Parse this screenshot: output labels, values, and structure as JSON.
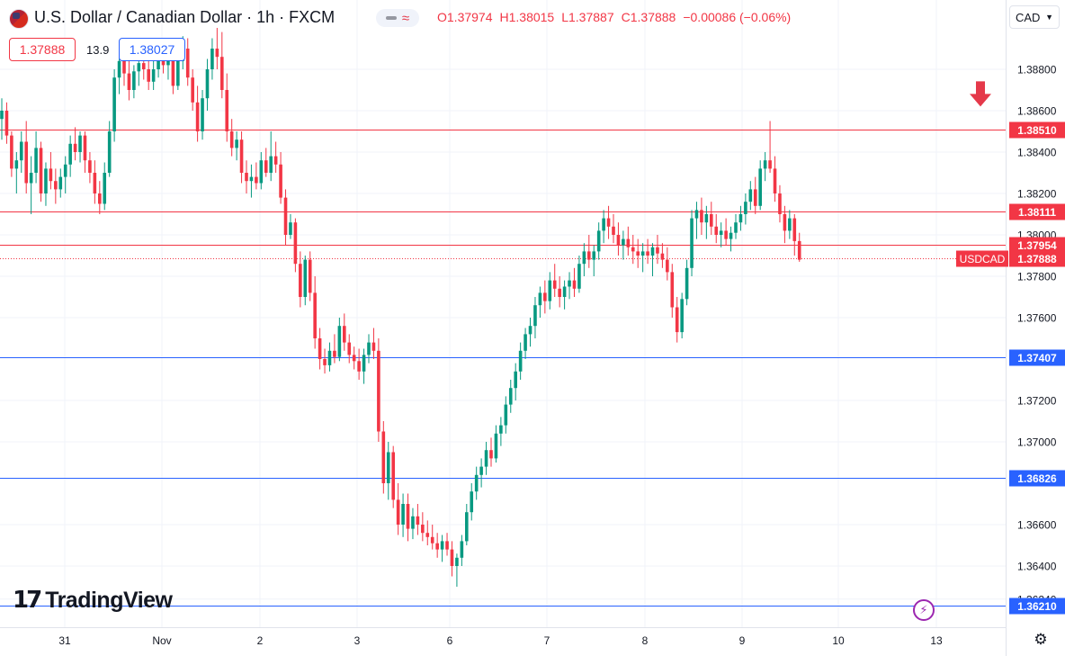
{
  "header": {
    "title": "U.S. Dollar / Canadian Dollar · 1h · FXCM",
    "open": "O1.37974",
    "high": "H1.38015",
    "low": "L1.37887",
    "close": "C1.37888",
    "change": "−0.00086 (−0.06%)",
    "sell_price": "1.37888",
    "spread": "13.9",
    "buy_price": "1.38027",
    "currency": "CAD"
  },
  "brand": "TradingView",
  "colors": {
    "up": "#089981",
    "down": "#f23645",
    "resistance": "#f23645",
    "support": "#2962ff",
    "arrow": "#e5394a"
  },
  "icons": {
    "currency_chevron": "chevron-down-icon",
    "settings": "gear-icon",
    "bolt": "lightning-icon",
    "arrow": "down-arrow-icon"
  },
  "chart_data": {
    "type": "candlestick",
    "symbol": "USDCAD",
    "timeframe": "1h",
    "ylim": [
      1.3626,
      1.3903
    ],
    "yticks": [
      "1.38800",
      "1.38600",
      "1.38400",
      "1.38200",
      "1.38000",
      "1.37800",
      "1.37600",
      "1.37200",
      "1.37000",
      "1.36600",
      "1.36400",
      "1.36240"
    ],
    "xticks": [
      {
        "label": "31",
        "date": "2023-10-31"
      },
      {
        "label": "Nov",
        "date": "2023-11-01"
      },
      {
        "label": "2",
        "date": "2023-11-02"
      },
      {
        "label": "3",
        "date": "2023-11-03"
      },
      {
        "label": "6",
        "date": "2023-11-06"
      },
      {
        "label": "7",
        "date": "2023-11-07"
      },
      {
        "label": "8",
        "date": "2023-11-08"
      },
      {
        "label": "9",
        "date": "2023-11-09"
      },
      {
        "label": "10",
        "date": "2023-11-10"
      },
      {
        "label": "13",
        "date": "2023-11-13"
      }
    ],
    "horizontal_lines": [
      {
        "value": 1.3851,
        "label": "1.38510",
        "color": "#f23645"
      },
      {
        "value": 1.38111,
        "label": "1.38111",
        "color": "#f23645"
      },
      {
        "value": 1.37954,
        "label": "1.37954",
        "color": "#f23645"
      },
      {
        "value": 1.37407,
        "label": "1.37407",
        "color": "#2962ff"
      },
      {
        "value": 1.36826,
        "label": "1.36826",
        "color": "#2962ff"
      },
      {
        "value": 1.3621,
        "label": "1.36210",
        "color": "#2962ff"
      }
    ],
    "current_price": {
      "value": 1.37888,
      "label": "1.37888",
      "symbol_label": "USDCAD"
    },
    "marker": {
      "type": "down-arrow",
      "x_index": 200,
      "y": 1.3862
    },
    "ohlc": [
      [
        1.3856,
        1.3866,
        1.3846,
        1.386
      ],
      [
        1.386,
        1.3864,
        1.3844,
        1.3848
      ],
      [
        1.3848,
        1.385,
        1.3828,
        1.3832
      ],
      [
        1.3832,
        1.384,
        1.382,
        1.3836
      ],
      [
        1.3836,
        1.385,
        1.383,
        1.3845
      ],
      [
        1.3845,
        1.3855,
        1.382,
        1.3825
      ],
      [
        1.3825,
        1.3838,
        1.381,
        1.383
      ],
      [
        1.383,
        1.385,
        1.3825,
        1.3842
      ],
      [
        1.3842,
        1.3845,
        1.3816,
        1.382
      ],
      [
        1.382,
        1.3835,
        1.3814,
        1.3832
      ],
      [
        1.3832,
        1.384,
        1.3822,
        1.3826
      ],
      [
        1.3826,
        1.3832,
        1.3815,
        1.3822
      ],
      [
        1.3822,
        1.3832,
        1.3818,
        1.3828
      ],
      [
        1.3828,
        1.3838,
        1.382,
        1.3834
      ],
      [
        1.3834,
        1.3848,
        1.3828,
        1.3844
      ],
      [
        1.3844,
        1.3852,
        1.3836,
        1.384
      ],
      [
        1.384,
        1.385,
        1.3835,
        1.3848
      ],
      [
        1.3848,
        1.385,
        1.383,
        1.3836
      ],
      [
        1.3836,
        1.384,
        1.3825,
        1.383
      ],
      [
        1.383,
        1.3836,
        1.3815,
        1.382
      ],
      [
        1.382,
        1.3826,
        1.381,
        1.3815
      ],
      [
        1.3815,
        1.3835,
        1.3812,
        1.383
      ],
      [
        1.383,
        1.3855,
        1.3828,
        1.385
      ],
      [
        1.385,
        1.388,
        1.3845,
        1.3876
      ],
      [
        1.3876,
        1.3888,
        1.3868,
        1.3884
      ],
      [
        1.3884,
        1.389,
        1.3872,
        1.3878
      ],
      [
        1.3878,
        1.3885,
        1.3865,
        1.387
      ],
      [
        1.387,
        1.3882,
        1.3866,
        1.3879
      ],
      [
        1.3879,
        1.3888,
        1.3872,
        1.3883
      ],
      [
        1.3883,
        1.389,
        1.3875,
        1.388
      ],
      [
        1.388,
        1.3886,
        1.387,
        1.3874
      ],
      [
        1.3874,
        1.3884,
        1.387,
        1.388
      ],
      [
        1.388,
        1.389,
        1.3876,
        1.3886
      ],
      [
        1.3886,
        1.3892,
        1.3878,
        1.3882
      ],
      [
        1.3882,
        1.3888,
        1.3875,
        1.3884
      ],
      [
        1.3884,
        1.389,
        1.3868,
        1.3872
      ],
      [
        1.3872,
        1.3886,
        1.387,
        1.3884
      ],
      [
        1.3884,
        1.3896,
        1.388,
        1.389
      ],
      [
        1.389,
        1.3895,
        1.3872,
        1.3876
      ],
      [
        1.3876,
        1.388,
        1.386,
        1.3864
      ],
      [
        1.3864,
        1.3872,
        1.3845,
        1.385
      ],
      [
        1.385,
        1.387,
        1.3846,
        1.3866
      ],
      [
        1.3866,
        1.3885,
        1.386,
        1.388
      ],
      [
        1.388,
        1.3895,
        1.3875,
        1.389
      ],
      [
        1.389,
        1.39,
        1.388,
        1.3886
      ],
      [
        1.3886,
        1.3898,
        1.3866,
        1.387
      ],
      [
        1.387,
        1.3878,
        1.3845,
        1.385
      ],
      [
        1.385,
        1.3856,
        1.3838,
        1.3842
      ],
      [
        1.3842,
        1.385,
        1.3836,
        1.3846
      ],
      [
        1.3846,
        1.385,
        1.3825,
        1.383
      ],
      [
        1.383,
        1.3836,
        1.382,
        1.3826
      ],
      [
        1.3826,
        1.3834,
        1.3818,
        1.3828
      ],
      [
        1.3828,
        1.3835,
        1.3822,
        1.3825
      ],
      [
        1.3825,
        1.384,
        1.3822,
        1.3836
      ],
      [
        1.3836,
        1.3842,
        1.3828,
        1.383
      ],
      [
        1.383,
        1.385,
        1.3826,
        1.3838
      ],
      [
        1.3838,
        1.3845,
        1.383,
        1.3834
      ],
      [
        1.3834,
        1.384,
        1.3815,
        1.3818
      ],
      [
        1.3818,
        1.3822,
        1.3795,
        1.38
      ],
      [
        1.38,
        1.381,
        1.3798,
        1.3806
      ],
      [
        1.3806,
        1.3808,
        1.3782,
        1.3786
      ],
      [
        1.3786,
        1.3792,
        1.3765,
        1.377
      ],
      [
        1.377,
        1.379,
        1.3766,
        1.3788
      ],
      [
        1.3788,
        1.3792,
        1.3768,
        1.3772
      ],
      [
        1.3772,
        1.378,
        1.3745,
        1.375
      ],
      [
        1.375,
        1.3755,
        1.3735,
        1.374
      ],
      [
        1.374,
        1.3745,
        1.3733,
        1.3737
      ],
      [
        1.3737,
        1.3748,
        1.3734,
        1.3744
      ],
      [
        1.3744,
        1.3752,
        1.3738,
        1.3741
      ],
      [
        1.3741,
        1.376,
        1.3739,
        1.3756
      ],
      [
        1.3756,
        1.3762,
        1.3744,
        1.3748
      ],
      [
        1.3748,
        1.3752,
        1.3738,
        1.3742
      ],
      [
        1.3742,
        1.3746,
        1.3735,
        1.3739
      ],
      [
        1.3739,
        1.3745,
        1.373,
        1.3734
      ],
      [
        1.3734,
        1.3745,
        1.3728,
        1.3742
      ],
      [
        1.3742,
        1.3752,
        1.3738,
        1.3748
      ],
      [
        1.3748,
        1.3755,
        1.374,
        1.3744
      ],
      [
        1.3744,
        1.375,
        1.37,
        1.3705
      ],
      [
        1.3705,
        1.371,
        1.3675,
        1.368
      ],
      [
        1.368,
        1.37,
        1.3672,
        1.3695
      ],
      [
        1.3695,
        1.3698,
        1.3668,
        1.3672
      ],
      [
        1.3672,
        1.368,
        1.3655,
        1.366
      ],
      [
        1.366,
        1.3675,
        1.3654,
        1.367
      ],
      [
        1.367,
        1.3675,
        1.3652,
        1.3658
      ],
      [
        1.3658,
        1.3668,
        1.3653,
        1.3664
      ],
      [
        1.3664,
        1.367,
        1.3655,
        1.366
      ],
      [
        1.366,
        1.3666,
        1.3652,
        1.3656
      ],
      [
        1.3656,
        1.3662,
        1.365,
        1.3654
      ],
      [
        1.3654,
        1.366,
        1.3648,
        1.3651
      ],
      [
        1.3651,
        1.3656,
        1.3644,
        1.3648
      ],
      [
        1.3648,
        1.3655,
        1.3642,
        1.3652
      ],
      [
        1.3652,
        1.3656,
        1.3645,
        1.3648
      ],
      [
        1.3648,
        1.3652,
        1.3635,
        1.364
      ],
      [
        1.364,
        1.3646,
        1.363,
        1.3644
      ],
      [
        1.3644,
        1.3655,
        1.364,
        1.3652
      ],
      [
        1.3652,
        1.367,
        1.365,
        1.3666
      ],
      [
        1.3666,
        1.368,
        1.3662,
        1.3676
      ],
      [
        1.3676,
        1.3688,
        1.3672,
        1.3684
      ],
      [
        1.3684,
        1.3692,
        1.3678,
        1.3688
      ],
      [
        1.3688,
        1.37,
        1.3684,
        1.3696
      ],
      [
        1.3696,
        1.3702,
        1.3688,
        1.3692
      ],
      [
        1.3692,
        1.3708,
        1.369,
        1.3704
      ],
      [
        1.3704,
        1.3712,
        1.3698,
        1.3708
      ],
      [
        1.3708,
        1.3722,
        1.3704,
        1.3718
      ],
      [
        1.3718,
        1.373,
        1.3714,
        1.3726
      ],
      [
        1.3726,
        1.3738,
        1.372,
        1.3734
      ],
      [
        1.3734,
        1.3748,
        1.373,
        1.3744
      ],
      [
        1.3744,
        1.3755,
        1.374,
        1.3752
      ],
      [
        1.3752,
        1.376,
        1.3746,
        1.3756
      ],
      [
        1.3756,
        1.377,
        1.375,
        1.3766
      ],
      [
        1.3766,
        1.3775,
        1.376,
        1.3772
      ],
      [
        1.3772,
        1.3778,
        1.3762,
        1.3768
      ],
      [
        1.3768,
        1.3782,
        1.3764,
        1.3778
      ],
      [
        1.3778,
        1.3786,
        1.377,
        1.3774
      ],
      [
        1.3774,
        1.378,
        1.3765,
        1.377
      ],
      [
        1.377,
        1.3778,
        1.3764,
        1.3775
      ],
      [
        1.3775,
        1.3782,
        1.3769,
        1.3778
      ],
      [
        1.3778,
        1.3784,
        1.377,
        1.3774
      ],
      [
        1.3774,
        1.379,
        1.3772,
        1.3786
      ],
      [
        1.3786,
        1.3796,
        1.378,
        1.3792
      ],
      [
        1.3792,
        1.38,
        1.3784,
        1.3788
      ],
      [
        1.3788,
        1.3795,
        1.378,
        1.3792
      ],
      [
        1.3792,
        1.3806,
        1.3788,
        1.3802
      ],
      [
        1.3802,
        1.3812,
        1.3796,
        1.3808
      ],
      [
        1.3808,
        1.3814,
        1.3798,
        1.3804
      ],
      [
        1.3804,
        1.381,
        1.3796,
        1.38
      ],
      [
        1.38,
        1.3806,
        1.379,
        1.3795
      ],
      [
        1.3795,
        1.3802,
        1.3788,
        1.3798
      ],
      [
        1.3798,
        1.3804,
        1.379,
        1.3794
      ],
      [
        1.3794,
        1.38,
        1.3786,
        1.3792
      ],
      [
        1.3792,
        1.3798,
        1.3784,
        1.379
      ],
      [
        1.379,
        1.3796,
        1.3782,
        1.3792
      ],
      [
        1.3792,
        1.3798,
        1.3786,
        1.379
      ],
      [
        1.379,
        1.3796,
        1.378,
        1.3794
      ],
      [
        1.3794,
        1.38,
        1.3786,
        1.3791
      ],
      [
        1.3791,
        1.3796,
        1.3784,
        1.3788
      ],
      [
        1.3788,
        1.3794,
        1.3778,
        1.3782
      ],
      [
        1.3782,
        1.3786,
        1.376,
        1.3765
      ],
      [
        1.3765,
        1.377,
        1.3748,
        1.3753
      ],
      [
        1.3753,
        1.3772,
        1.375,
        1.3769
      ],
      [
        1.3769,
        1.3788,
        1.3766,
        1.3784
      ],
      [
        1.3784,
        1.3812,
        1.378,
        1.3808
      ],
      [
        1.3808,
        1.3816,
        1.3798,
        1.3812
      ],
      [
        1.3812,
        1.3818,
        1.38,
        1.3806
      ],
      [
        1.3806,
        1.3814,
        1.3798,
        1.381
      ],
      [
        1.381,
        1.3816,
        1.38,
        1.3804
      ],
      [
        1.3804,
        1.381,
        1.3796,
        1.38
      ],
      [
        1.38,
        1.3806,
        1.3794,
        1.3802
      ],
      [
        1.3802,
        1.3808,
        1.3795,
        1.3798
      ],
      [
        1.3798,
        1.3804,
        1.3792,
        1.3801
      ],
      [
        1.3801,
        1.381,
        1.3798,
        1.3806
      ],
      [
        1.3806,
        1.3814,
        1.3802,
        1.381
      ],
      [
        1.381,
        1.382,
        1.3805,
        1.3816
      ],
      [
        1.3816,
        1.3826,
        1.3812,
        1.3822
      ],
      [
        1.3822,
        1.3828,
        1.381,
        1.3814
      ],
      [
        1.3814,
        1.3836,
        1.3812,
        1.3832
      ],
      [
        1.3832,
        1.384,
        1.3826,
        1.3836
      ],
      [
        1.3836,
        1.3855,
        1.383,
        1.3832
      ],
      [
        1.3832,
        1.3838,
        1.3816,
        1.382
      ],
      [
        1.382,
        1.3824,
        1.3806,
        1.381
      ],
      [
        1.381,
        1.3814,
        1.3796,
        1.3802
      ],
      [
        1.3802,
        1.3812,
        1.3798,
        1.3808
      ],
      [
        1.3808,
        1.381,
        1.379,
        1.3797
      ],
      [
        1.3797,
        1.3801,
        1.3787,
        1.3788
      ]
    ]
  }
}
